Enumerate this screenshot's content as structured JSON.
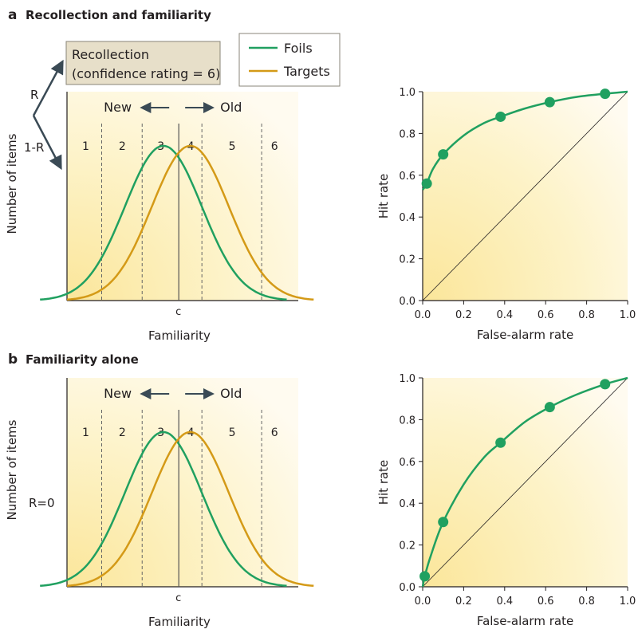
{
  "colors": {
    "foils": "#20a060",
    "targets": "#d49a17",
    "criterion": "#555555",
    "arrow": "#3a4a55",
    "background": "#fdf3c5"
  },
  "panel_a": {
    "letter": "a",
    "title": "Recollection and familiarity",
    "recollection_line1": "Recollection",
    "recollection_line2": "(confidence rating = 6)",
    "r_label": "R",
    "one_minus_r_label": "1-R",
    "legend": {
      "foils": "Foils",
      "targets": "Targets"
    }
  },
  "panel_b": {
    "letter": "b",
    "title": "Familiarity alone",
    "r_zero_label": "R=0"
  },
  "chart_data": [
    {
      "type": "line",
      "panel": "a-distribution",
      "xlabel": "Familiarity",
      "ylabel": "Number of items",
      "criterion_label": "c",
      "direction_labels": {
        "new": "New",
        "old": "Old"
      },
      "bins": [
        "1",
        "2",
        "3",
        "4",
        "5",
        "6"
      ],
      "series": [
        {
          "name": "Foils",
          "mean": 0.0,
          "sd": 1.0
        },
        {
          "name": "Targets",
          "mean": 0.7,
          "sd": 1.0
        }
      ],
      "xlim": [
        -2.5,
        3.5
      ],
      "criterion": 0.4,
      "bin_boundaries": [
        -1.6,
        -0.55,
        1.0,
        2.55
      ]
    },
    {
      "type": "line",
      "panel": "a-roc",
      "xlabel": "False-alarm rate",
      "ylabel": "Hit rate",
      "xlim": [
        0,
        1
      ],
      "ylim": [
        0,
        1
      ],
      "xticks": [
        "0.0",
        "0.2",
        "0.4",
        "0.6",
        "0.8",
        "1.0"
      ],
      "yticks": [
        "0.0",
        "0.2",
        "0.4",
        "0.6",
        "0.8",
        "1.0"
      ],
      "points": [
        {
          "x": 0.02,
          "y": 0.56
        },
        {
          "x": 0.1,
          "y": 0.7
        },
        {
          "x": 0.38,
          "y": 0.88
        },
        {
          "x": 0.62,
          "y": 0.95
        },
        {
          "x": 0.89,
          "y": 0.99
        }
      ],
      "curve": [
        [
          0.0,
          0.53
        ],
        [
          0.02,
          0.56
        ],
        [
          0.05,
          0.63
        ],
        [
          0.1,
          0.7
        ],
        [
          0.2,
          0.79
        ],
        [
          0.3,
          0.85
        ],
        [
          0.38,
          0.88
        ],
        [
          0.5,
          0.92
        ],
        [
          0.62,
          0.95
        ],
        [
          0.75,
          0.975
        ],
        [
          0.89,
          0.99
        ],
        [
          1.0,
          1.0
        ]
      ]
    },
    {
      "type": "line",
      "panel": "b-distribution",
      "xlabel": "Familiarity",
      "ylabel": "Number of items",
      "criterion_label": "c",
      "direction_labels": {
        "new": "New",
        "old": "Old"
      },
      "bins": [
        "1",
        "2",
        "3",
        "4",
        "5",
        "6"
      ],
      "series": [
        {
          "name": "Foils",
          "mean": 0.0,
          "sd": 1.0
        },
        {
          "name": "Targets",
          "mean": 0.7,
          "sd": 1.0
        }
      ],
      "xlim": [
        -2.5,
        3.5
      ],
      "criterion": 0.4,
      "bin_boundaries": [
        -1.6,
        -0.55,
        1.0,
        2.55
      ]
    },
    {
      "type": "line",
      "panel": "b-roc",
      "xlabel": "False-alarm rate",
      "ylabel": "Hit rate",
      "xlim": [
        0,
        1
      ],
      "ylim": [
        0,
        1
      ],
      "xticks": [
        "0.0",
        "0.2",
        "0.4",
        "0.6",
        "0.8",
        "1.0"
      ],
      "yticks": [
        "0.0",
        "0.2",
        "0.4",
        "0.6",
        "0.8",
        "1.0"
      ],
      "points": [
        {
          "x": 0.01,
          "y": 0.05
        },
        {
          "x": 0.1,
          "y": 0.31
        },
        {
          "x": 0.38,
          "y": 0.69
        },
        {
          "x": 0.62,
          "y": 0.86
        },
        {
          "x": 0.89,
          "y": 0.97
        }
      ],
      "curve": [
        [
          0.0,
          0.0
        ],
        [
          0.01,
          0.05
        ],
        [
          0.04,
          0.15
        ],
        [
          0.1,
          0.31
        ],
        [
          0.2,
          0.49
        ],
        [
          0.3,
          0.62
        ],
        [
          0.38,
          0.69
        ],
        [
          0.5,
          0.79
        ],
        [
          0.62,
          0.86
        ],
        [
          0.75,
          0.92
        ],
        [
          0.89,
          0.97
        ],
        [
          1.0,
          1.0
        ]
      ]
    }
  ]
}
